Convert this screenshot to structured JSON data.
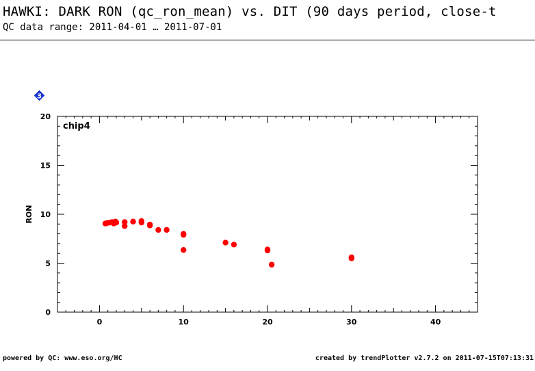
{
  "header": {
    "title": "HAWKI: DARK RON (qc_ron_mean) vs. DIT (90 days period, close-t",
    "subtitle": "QC data range: 2011-04-01 … 2011-07-01"
  },
  "panel": {
    "number_label": "3",
    "marker_color": "#1a33cc"
  },
  "footer": {
    "left": "powered by QC: www.eso.org/HC",
    "right": "created by trendPlotter v2.7.2 on 2011-07-15T07:13:31"
  },
  "chart_data": {
    "type": "scatter",
    "title": "",
    "annotation": "chip4",
    "xlabel": "",
    "ylabel": "RON",
    "xlim": [
      -5,
      45
    ],
    "ylim": [
      0,
      20
    ],
    "xticks": [
      0,
      10,
      20,
      30,
      40
    ],
    "yticks": [
      0,
      5,
      10,
      15,
      20
    ],
    "grid": false,
    "point_color": "#ff0000",
    "series": [
      {
        "points": [
          {
            "x": 0.7,
            "y": 9.05
          },
          {
            "x": 0.9,
            "y": 9.1
          },
          {
            "x": 1.2,
            "y": 9.15
          },
          {
            "x": 1.5,
            "y": 9.2
          },
          {
            "x": 1.7,
            "y": 9.05
          },
          {
            "x": 1.9,
            "y": 9.25
          },
          {
            "x": 2.0,
            "y": 9.15
          },
          {
            "x": 3.0,
            "y": 9.2
          },
          {
            "x": 3.0,
            "y": 8.8
          },
          {
            "x": 4.0,
            "y": 9.25
          },
          {
            "x": 5.0,
            "y": 9.3
          },
          {
            "x": 5.0,
            "y": 9.15
          },
          {
            "x": 6.0,
            "y": 8.95
          },
          {
            "x": 6.0,
            "y": 8.85
          },
          {
            "x": 7.0,
            "y": 8.4
          },
          {
            "x": 8.0,
            "y": 8.4
          },
          {
            "x": 10.0,
            "y": 8.0
          },
          {
            "x": 10.0,
            "y": 7.9
          },
          {
            "x": 10.0,
            "y": 6.35
          },
          {
            "x": 15.0,
            "y": 7.1
          },
          {
            "x": 16.0,
            "y": 6.9
          },
          {
            "x": 20.0,
            "y": 6.4
          },
          {
            "x": 20.0,
            "y": 6.3
          },
          {
            "x": 20.5,
            "y": 4.85
          },
          {
            "x": 30.0,
            "y": 5.6
          },
          {
            "x": 30.0,
            "y": 5.5
          }
        ]
      }
    ]
  }
}
